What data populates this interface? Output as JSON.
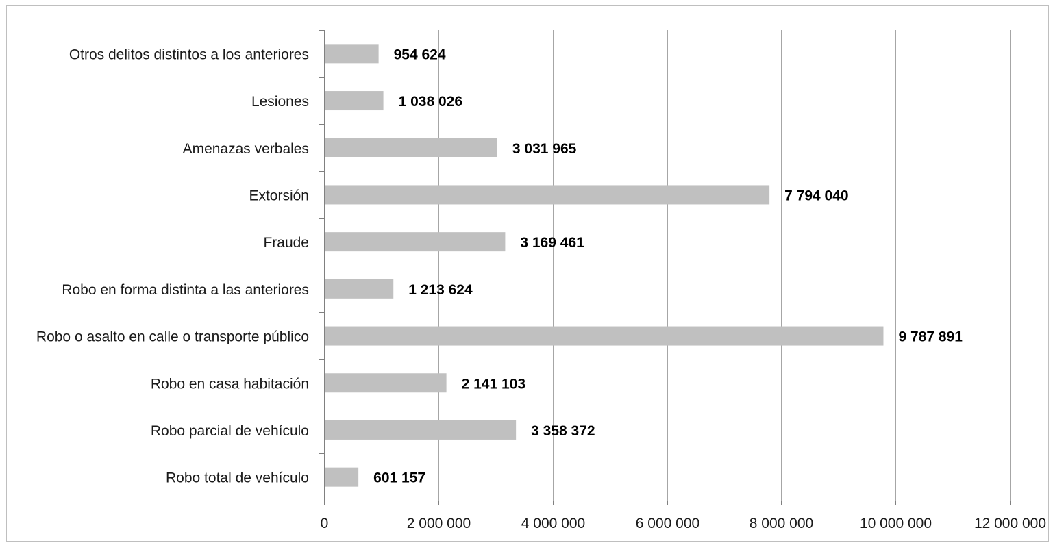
{
  "chart_data": {
    "type": "bar",
    "orientation": "horizontal",
    "categories": [
      "Otros delitos distintos a los anteriores",
      "Lesiones",
      "Amenazas verbales",
      "Extorsión",
      "Fraude",
      "Robo en forma distinta a las anteriores",
      "Robo o asalto en calle o transporte público",
      "Robo en casa habitación",
      "Robo parcial de vehículo",
      "Robo total de vehículo"
    ],
    "values": [
      954624,
      1038026,
      3031965,
      7794040,
      3169461,
      1213624,
      9787891,
      2141103,
      3358372,
      601157
    ],
    "value_labels": [
      "954 624",
      "1 038 026",
      "3 031 965",
      "7 794 040",
      "3 169 461",
      "1 213 624",
      "9 787 891",
      "2 141 103",
      "3 358 372",
      "601 157"
    ],
    "xticks": [
      0,
      2000000,
      4000000,
      6000000,
      8000000,
      10000000,
      12000000
    ],
    "xtick_labels": [
      "0",
      "2 000 000",
      "4 000 000",
      "6 000 000",
      "8 000 000",
      "10 000 000",
      "12 000 000"
    ],
    "xlim": [
      0,
      12000000
    ],
    "grid": "vertical",
    "legend": "none",
    "colors": {
      "bar": "#c0c0c0",
      "grid": "#a6a6a6",
      "axis": "#808080",
      "frame": "#bfbfbf"
    }
  }
}
